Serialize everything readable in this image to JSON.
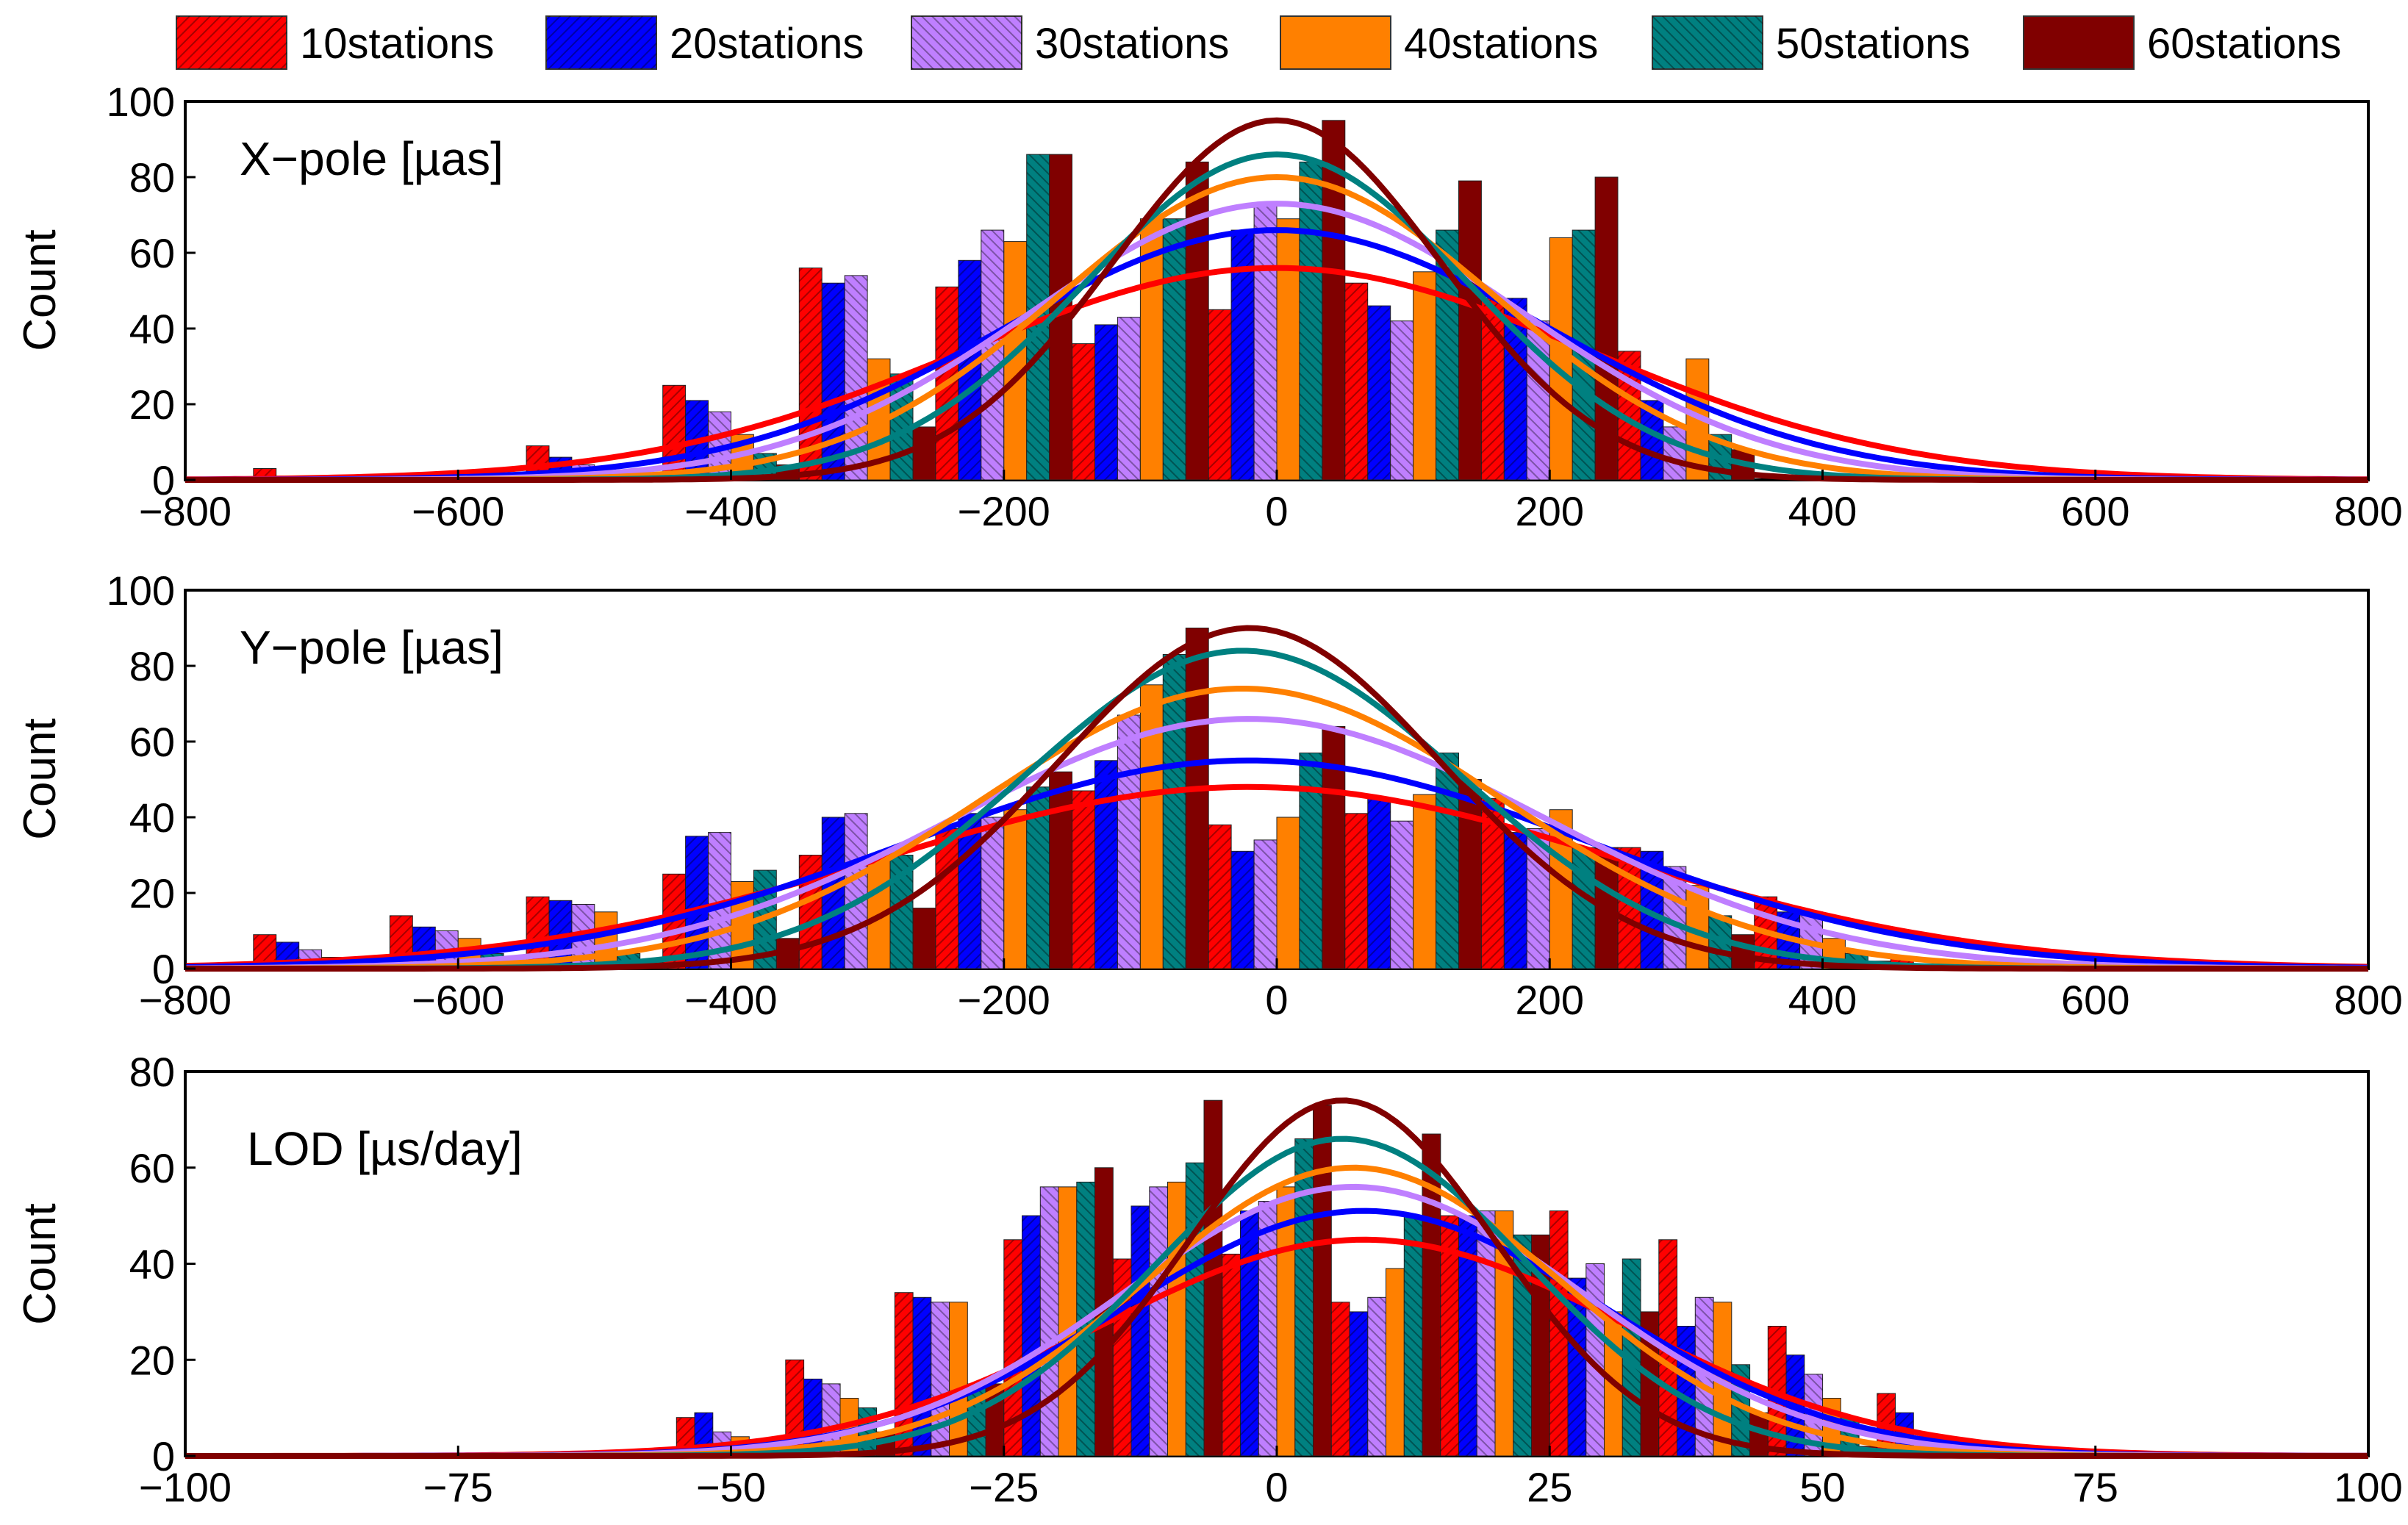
{
  "chart_data": {
    "type": "bar",
    "legend": {
      "placement": "top",
      "entries": [
        {
          "label": "10stations",
          "color": "#ff0000",
          "hatch": "diag-right"
        },
        {
          "label": "20stations",
          "color": "#0000ff",
          "hatch": "diag-right"
        },
        {
          "label": "30stations",
          "color": "#bf7fff",
          "hatch": "diag-left"
        },
        {
          "label": "40stations",
          "color": "#ff8000",
          "hatch": "none"
        },
        {
          "label": "50stations",
          "color": "#008080",
          "hatch": "diag-left"
        },
        {
          "label": "60stations",
          "color": "#800000",
          "hatch": "none"
        }
      ]
    },
    "panels": [
      {
        "id": "xpole",
        "label": "X−pole [µas]",
        "ylabel": "Count",
        "xlim": [
          -800,
          800
        ],
        "ylim": [
          0,
          100
        ],
        "xticks": [
          -800,
          -600,
          -400,
          -200,
          0,
          200,
          400,
          600,
          800
        ],
        "xtick_labels": [
          "−800",
          "−600",
          "−400",
          "−200",
          "0",
          "200",
          "400",
          "600",
          "800"
        ],
        "yticks": [
          0,
          20,
          40,
          60,
          80,
          100
        ],
        "ytick_labels": [
          "0",
          "20",
          "40",
          "60",
          "80",
          "100"
        ],
        "bin_centers": [
          -700,
          -500,
          -400,
          -300,
          -200,
          -100,
          0,
          100,
          200,
          300
        ],
        "bin_width": 100,
        "series": [
          {
            "name": "10stations",
            "values": [
              3,
              9,
              25,
              56,
              51,
              36,
              45,
              52,
              48,
              34
            ]
          },
          {
            "name": "20stations",
            "values": [
              1,
              6,
              21,
              52,
              58,
              41,
              66,
              46,
              48,
              21
            ]
          },
          {
            "name": "30stations",
            "values": [
              0,
              4,
              18,
              54,
              66,
              43,
              73,
              42,
              42,
              14
            ]
          },
          {
            "name": "40stations",
            "values": [
              0,
              2,
              12,
              32,
              63,
              69,
              69,
              55,
              64,
              32
            ]
          },
          {
            "name": "50stations",
            "values": [
              0,
              0,
              7,
              28,
              86,
              69,
              84,
              66,
              66,
              12
            ]
          },
          {
            "name": "60stations",
            "values": [
              0,
              1,
              4,
              14,
              86,
              84,
              95,
              79,
              80,
              8
            ]
          }
        ],
        "fits": [
          {
            "name": "10stations",
            "amp": 56,
            "mean": 0,
            "sigma": 230
          },
          {
            "name": "20stations",
            "amp": 66,
            "mean": 0,
            "sigma": 200
          },
          {
            "name": "30stations",
            "amp": 73,
            "mean": 0,
            "sigma": 180
          },
          {
            "name": "40stations",
            "amp": 80,
            "mean": 0,
            "sigma": 160
          },
          {
            "name": "50stations",
            "amp": 86,
            "mean": 0,
            "sigma": 140
          },
          {
            "name": "60stations",
            "amp": 95,
            "mean": 0,
            "sigma": 120
          }
        ]
      },
      {
        "id": "ypole",
        "label": "Y−pole [µas]",
        "ylabel": "Count",
        "xlim": [
          -800,
          800
        ],
        "ylim": [
          0,
          100
        ],
        "xticks": [
          -800,
          -600,
          -400,
          -200,
          0,
          200,
          400,
          600,
          800
        ],
        "xtick_labels": [
          "−800",
          "−600",
          "−400",
          "−200",
          "0",
          "200",
          "400",
          "600",
          "800"
        ],
        "yticks": [
          0,
          20,
          40,
          60,
          80,
          100
        ],
        "ytick_labels": [
          "0",
          "20",
          "40",
          "60",
          "80",
          "100"
        ],
        "bin_centers": [
          -700,
          -600,
          -500,
          -400,
          -300,
          -200,
          -100,
          0,
          100,
          200,
          300,
          400,
          500
        ],
        "bin_width": 100,
        "series": [
          {
            "name": "10stations",
            "values": [
              9,
              14,
              19,
              25,
              30,
              37,
              47,
              38,
              41,
              45,
              32,
              19,
              3
            ]
          },
          {
            "name": "20stations",
            "values": [
              7,
              11,
              18,
              35,
              40,
              41,
              55,
              31,
              45,
              36,
              31,
              15,
              1
            ]
          },
          {
            "name": "30stations",
            "values": [
              5,
              10,
              17,
              36,
              41,
              40,
              67,
              34,
              39,
              37,
              27,
              15,
              0
            ]
          },
          {
            "name": "40stations",
            "values": [
              3,
              8,
              15,
              23,
              30,
              42,
              75,
              40,
              46,
              42,
              22,
              8,
              0
            ]
          },
          {
            "name": "50stations",
            "values": [
              1,
              4,
              4,
              26,
              30,
              48,
              83,
              57,
              57,
              32,
              14,
              4,
              0
            ]
          },
          {
            "name": "60stations",
            "values": [
              0,
              2,
              2,
              8,
              16,
              52,
              90,
              64,
              50,
              32,
              9,
              2,
              0
            ]
          }
        ],
        "fits": [
          {
            "name": "10stations",
            "amp": 48,
            "mean": -20,
            "sigma": 270
          },
          {
            "name": "20stations",
            "amp": 55,
            "mean": -20,
            "sigma": 250
          },
          {
            "name": "30stations",
            "amp": 66,
            "mean": -20,
            "sigma": 215
          },
          {
            "name": "40stations",
            "amp": 74,
            "mean": -25,
            "sigma": 190
          },
          {
            "name": "50stations",
            "amp": 84,
            "mean": -25,
            "sigma": 160
          },
          {
            "name": "60stations",
            "amp": 90,
            "mean": -20,
            "sigma": 140
          }
        ]
      },
      {
        "id": "lod",
        "label": "LOD [µs/day]",
        "ylabel": "Count",
        "xlim": [
          -100,
          100
        ],
        "ylim": [
          0,
          80
        ],
        "xticks": [
          -100,
          -75,
          -50,
          -25,
          0,
          25,
          50,
          75,
          100
        ],
        "xtick_labels": [
          "−100",
          "−75",
          "−50",
          "−25",
          "0",
          "25",
          "50",
          "75",
          "100"
        ],
        "yticks": [
          0,
          20,
          40,
          60,
          80
        ],
        "ytick_labels": [
          "0",
          "20",
          "40",
          "60",
          "80"
        ],
        "bin_centers": [
          -50,
          -40,
          -30,
          -20,
          -10,
          0,
          10,
          20,
          30,
          40,
          50,
          60
        ],
        "bin_width": 10,
        "series": [
          {
            "name": "10stations",
            "values": [
              8,
              20,
              34,
              45,
              41,
              42,
              32,
              50,
              51,
              45,
              27,
              13
            ]
          },
          {
            "name": "20stations",
            "values": [
              9,
              16,
              33,
              50,
              52,
              51,
              30,
              50,
              37,
              27,
              21,
              9
            ]
          },
          {
            "name": "30stations",
            "values": [
              5,
              15,
              32,
              56,
              56,
              53,
              33,
              51,
              40,
              33,
              17,
              4
            ]
          },
          {
            "name": "40stations",
            "values": [
              4,
              12,
              32,
              56,
              57,
              56,
              39,
              51,
              30,
              32,
              12,
              3
            ]
          },
          {
            "name": "50stations",
            "values": [
              3,
              10,
              15,
              57,
              61,
              66,
              50,
              46,
              41,
              19,
              8,
              2
            ]
          },
          {
            "name": "60stations",
            "values": [
              1,
              5,
              15,
              60,
              74,
              73,
              67,
              46,
              30,
              9,
              2,
              1
            ]
          }
        ],
        "fits": [
          {
            "name": "10stations",
            "amp": 45,
            "mean": 8,
            "sigma": 24
          },
          {
            "name": "20stations",
            "amp": 51,
            "mean": 8,
            "sigma": 22
          },
          {
            "name": "30stations",
            "amp": 56,
            "mean": 7,
            "sigma": 21
          },
          {
            "name": "40stations",
            "amp": 60,
            "mean": 7,
            "sigma": 19
          },
          {
            "name": "50stations",
            "amp": 66,
            "mean": 6,
            "sigma": 17
          },
          {
            "name": "60stations",
            "amp": 74,
            "mean": 6,
            "sigma": 14
          }
        ]
      }
    ]
  }
}
